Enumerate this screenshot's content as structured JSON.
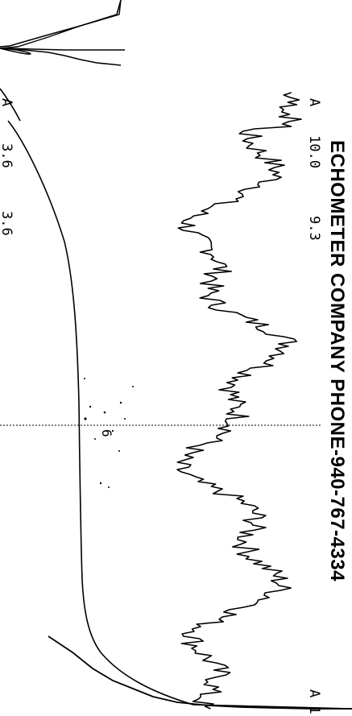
{
  "header": {
    "company_phone": "ECHOMETER COMPANY PHONE-940-767-4334"
  },
  "upper_labels": {
    "a_top": "A",
    "val_1": "10.0",
    "val_2": "9.3",
    "a_bottom": "A 1"
  },
  "lower_labels": {
    "a_top": "A",
    "val_1": "3.6",
    "val_2": "3.6"
  },
  "marker_label": "6",
  "colors": {
    "ink": "#000000",
    "paper": "#ffffff"
  }
}
